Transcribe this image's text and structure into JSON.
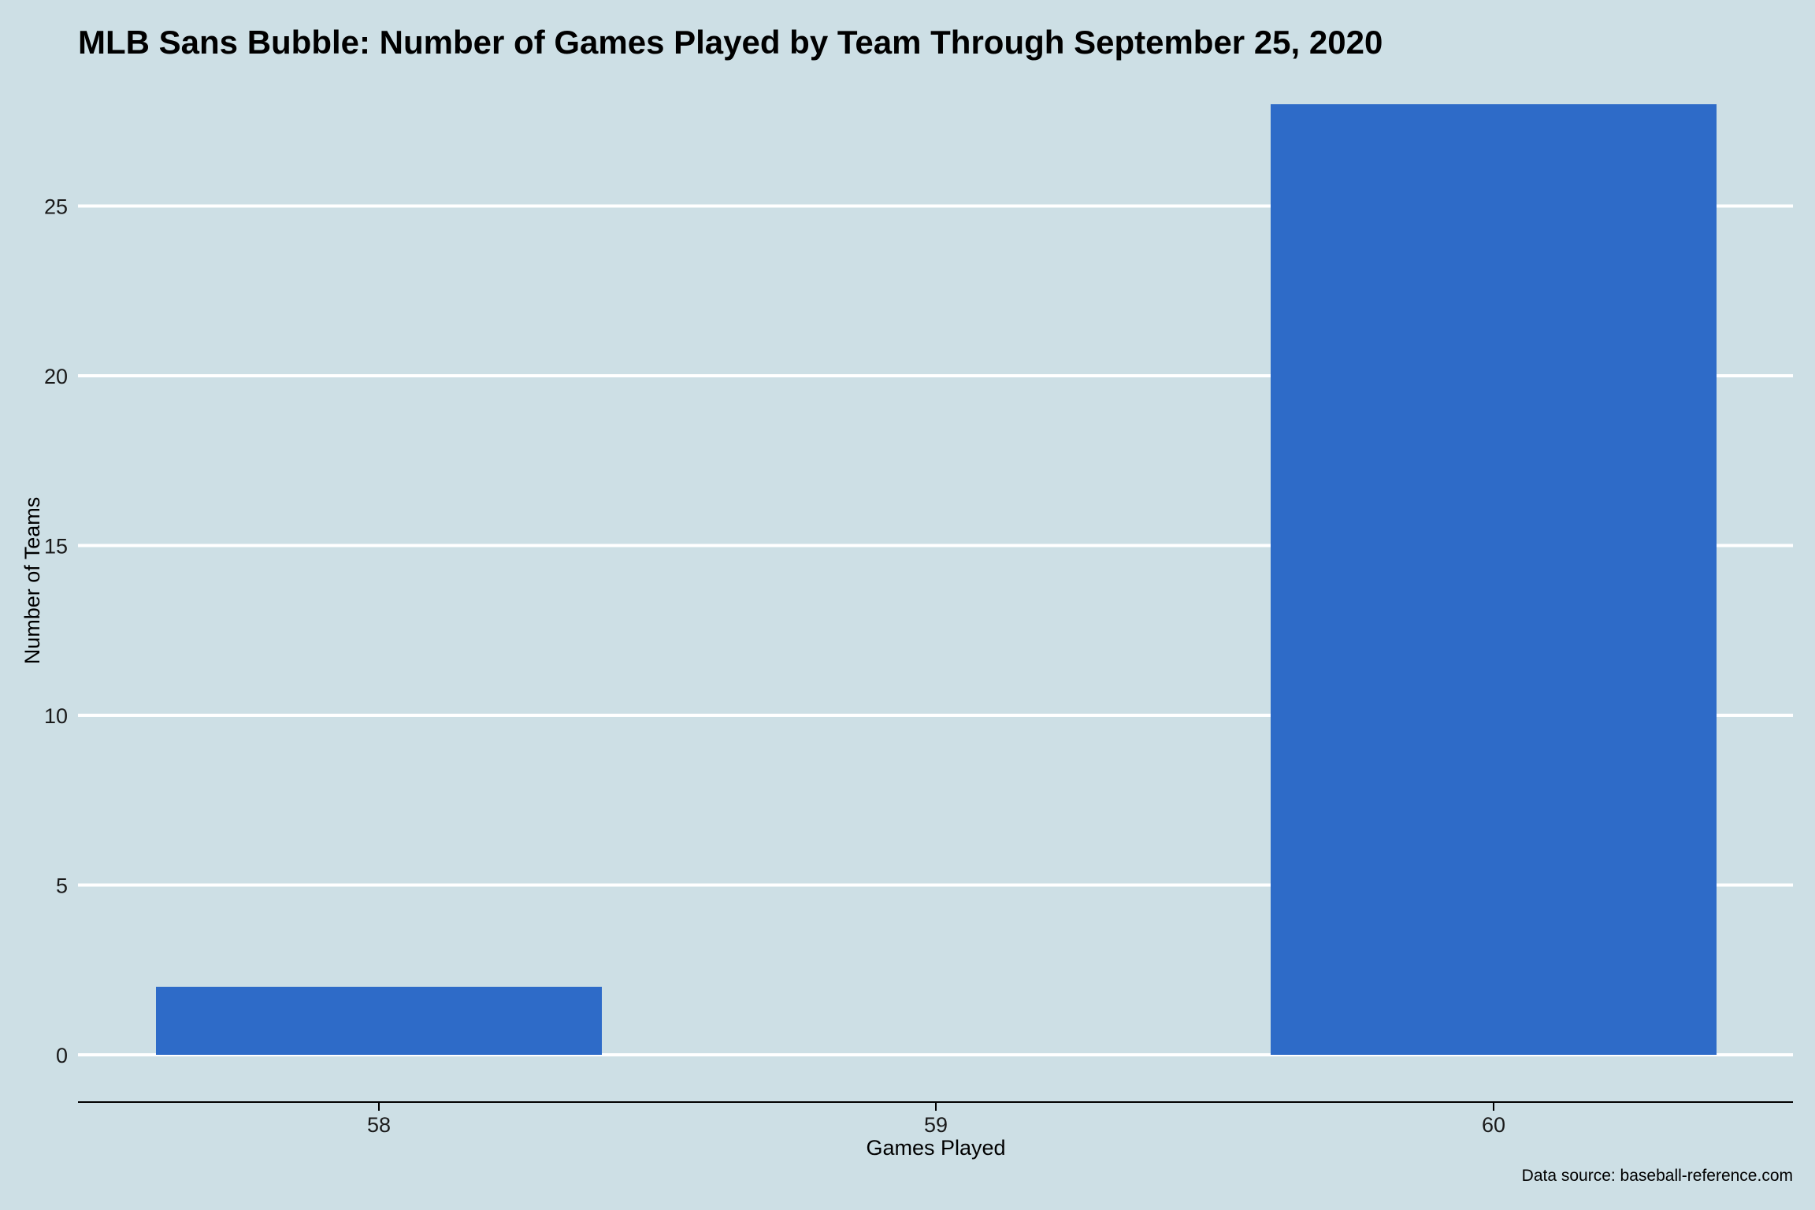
{
  "chart_data": {
    "type": "bar",
    "title": "MLB Sans Bubble: Number of Games Played by Team Through September 25, 2020",
    "xlabel": "Games Played",
    "ylabel": "Number of Teams",
    "caption": "Data source: baseball-reference.com",
    "categories": [
      "58",
      "59",
      "60"
    ],
    "values": [
      2,
      0,
      28
    ],
    "ylim": [
      0,
      28
    ],
    "yticks": [
      0,
      5,
      10,
      15,
      20,
      25
    ],
    "grid": "horizontal",
    "legend": "none",
    "colors": {
      "background": "#cddfe5",
      "bar": "#2e6bc8",
      "grid": "#ffffff"
    }
  }
}
